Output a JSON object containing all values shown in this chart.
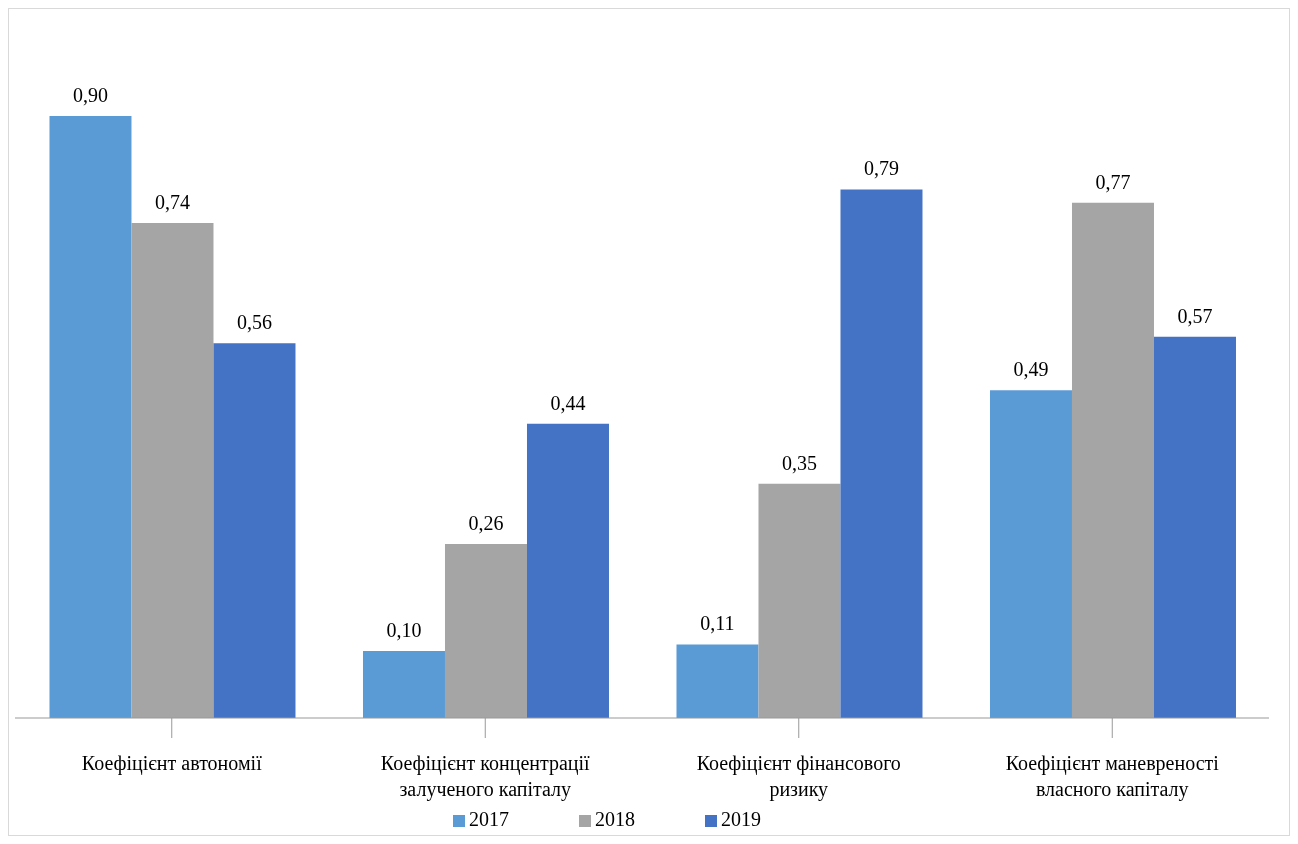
{
  "chart_data": {
    "type": "bar",
    "categories": [
      "Коефіцієнт автономії",
      "Коефіцієнт концентрації залученого капіталу",
      "Коефіцієнт фінансового ризику",
      "Коефіцієнт маневреності власного капіталу"
    ],
    "series": [
      {
        "name": "2017",
        "color": "#5b9bd5",
        "values": [
          0.9,
          0.1,
          0.11,
          0.49
        ],
        "value_labels": [
          "0,90",
          "0,10",
          "0,11",
          "0,49"
        ]
      },
      {
        "name": "2018",
        "color": "#a5a5a5",
        "values": [
          0.74,
          0.26,
          0.35,
          0.77
        ],
        "value_labels": [
          "0,74",
          "0,26",
          "0,35",
          "0,77"
        ]
      },
      {
        "name": "2019",
        "color": "#4472c4",
        "values": [
          0.56,
          0.44,
          0.79,
          0.57
        ],
        "value_labels": [
          "0,56",
          "0,44",
          "0,79",
          "0,57"
        ]
      }
    ],
    "legend": "bottom"
  }
}
